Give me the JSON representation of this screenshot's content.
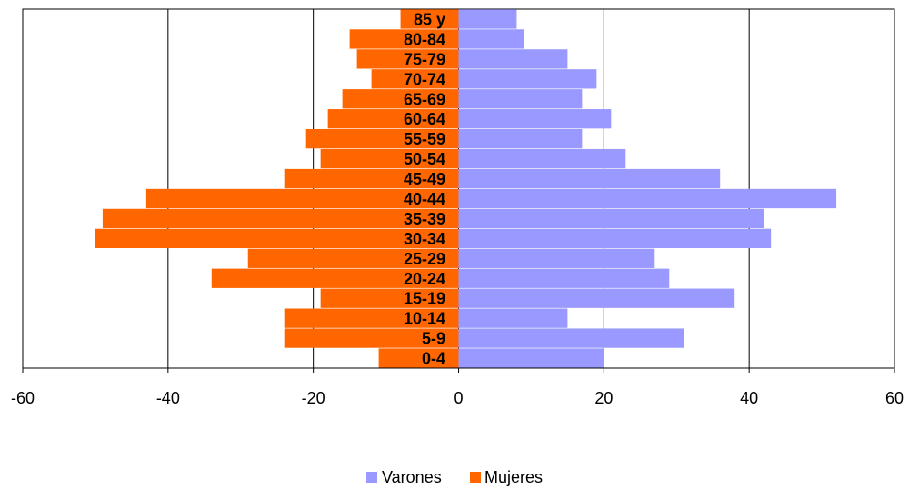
{
  "chart_data": {
    "type": "bar",
    "orientation": "horizontal",
    "categories": [
      "0-4",
      "5-9",
      "10-14",
      "15-19",
      "20-24",
      "25-29",
      "30-34",
      "35-39",
      "40-44",
      "45-49",
      "50-54",
      "55-59",
      "60-64",
      "65-69",
      "70-74",
      "75-79",
      "80-84",
      "85 y"
    ],
    "series": [
      {
        "name": "Varones",
        "color": "#9999ff",
        "values": [
          20,
          31,
          15,
          38,
          29,
          27,
          43,
          42,
          52,
          36,
          23,
          17,
          21,
          17,
          19,
          15,
          9,
          8
        ]
      },
      {
        "name": "Mujeres",
        "color": "#ff6600",
        "values": [
          -11,
          -24,
          -24,
          -19,
          -34,
          -29,
          -50,
          -49,
          -43,
          -24,
          -19,
          -21,
          -18,
          -16,
          -12,
          -14,
          -15,
          -8
        ]
      }
    ],
    "xlim": [
      -60,
      60
    ],
    "xticks": [
      -60,
      -40,
      -20,
      0,
      20,
      40,
      60
    ],
    "xtick_labels": [
      "-60",
      "-40",
      "-20",
      "0",
      "20",
      "40",
      "60"
    ],
    "grid": "vertical",
    "legend": "bottom-center"
  }
}
